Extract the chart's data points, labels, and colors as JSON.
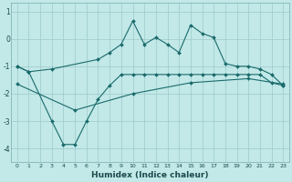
{
  "xlabel": "Humidex (Indice chaleur)",
  "bg_color": "#c2e8e8",
  "line_color": "#1a6b6b",
  "grid_color": "#9ac8c8",
  "ylim": [
    -4.5,
    1.3
  ],
  "xlim": [
    -0.5,
    23.5
  ],
  "line1_x": [
    0,
    1,
    3,
    7,
    8,
    9,
    10,
    11,
    12,
    13,
    14,
    15,
    16,
    17,
    18,
    19,
    20,
    21,
    22,
    23
  ],
  "line1_y": [
    -1.0,
    -1.2,
    -1.1,
    -0.75,
    -0.5,
    -0.2,
    0.65,
    -0.2,
    0.05,
    -0.2,
    -0.5,
    0.5,
    0.2,
    0.05,
    -0.9,
    -1.0,
    -1.0,
    -1.1,
    -1.3,
    -1.7
  ],
  "line2_x": [
    0,
    1,
    3,
    4,
    5,
    6,
    7,
    8,
    9,
    10,
    11,
    12,
    13,
    14,
    15,
    16,
    17,
    18,
    19,
    20,
    21,
    22,
    23
  ],
  "line2_y": [
    -1.0,
    -1.2,
    -3.0,
    -3.85,
    -3.85,
    -3.0,
    -2.2,
    -1.7,
    -1.3,
    -1.3,
    -1.3,
    -1.3,
    -1.3,
    -1.3,
    -1.3,
    -1.3,
    -1.3,
    -1.3,
    -1.3,
    -1.3,
    -1.3,
    -1.6,
    -1.7
  ],
  "line3_x": [
    0,
    5,
    10,
    15,
    20,
    23
  ],
  "line3_y": [
    -1.65,
    -2.6,
    -2.0,
    -1.6,
    -1.45,
    -1.65
  ]
}
